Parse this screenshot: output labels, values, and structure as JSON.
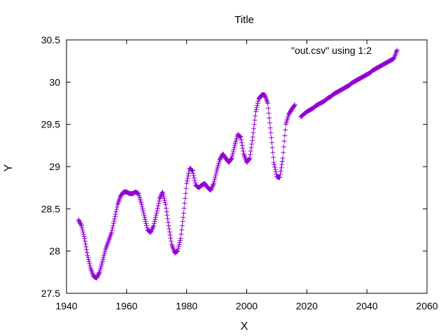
{
  "chart_data": {
    "type": "scatter",
    "title": "Title",
    "xlabel": "X",
    "ylabel": "Y",
    "xlim": [
      1940,
      2060
    ],
    "ylim": [
      27.5,
      30.5
    ],
    "xticks": [
      1940,
      1960,
      1980,
      2000,
      2020,
      2040,
      2060
    ],
    "yticks": [
      27.5,
      28,
      28.5,
      29,
      29.5,
      30,
      30.5
    ],
    "xtick_labels": [
      "1940",
      "1960",
      "1980",
      "2000",
      "2020",
      "2040",
      "2060"
    ],
    "ytick_labels": [
      "27.5",
      "28",
      "28.5",
      "29",
      "29.5",
      "30",
      "30.5"
    ],
    "grid": false,
    "legend_position": "top-right",
    "marker": "+",
    "series": [
      {
        "name": "\"out.csv\" using 1:2",
        "color": "#9400d3",
        "x": [
          1944.0,
          1945.0,
          1946.0,
          1947.0,
          1948.0,
          1949.0,
          1950.0,
          1951.0,
          1952.0,
          1953.0,
          1954.0,
          1955.0,
          1956.0,
          1957.0,
          1958.0,
          1959.0,
          1960.0,
          1961.0,
          1962.0,
          1963.0,
          1964.0,
          1965.0,
          1966.0,
          1967.0,
          1968.0,
          1969.0,
          1970.0,
          1971.0,
          1972.0,
          1973.0,
          1974.0,
          1975.0,
          1976.0,
          1977.0,
          1978.0,
          1979.0,
          1980.0,
          1981.0,
          1982.0,
          1983.0,
          1984.0,
          1985.0,
          1986.0,
          1987.0,
          1988.0,
          1989.0,
          1990.0,
          1991.0,
          1992.0,
          1993.0,
          1994.0,
          1995.0,
          1996.0,
          1997.0,
          1998.0,
          1999.0,
          2000.0,
          2001.0,
          2002.0,
          2003.0,
          2004.0,
          2005.0,
          2006.0,
          2007.0,
          2008.0,
          2009.0,
          2010.0,
          2011.0,
          2012.0,
          2013.0,
          2014.0,
          2015.0,
          2016.0,
          2018.0,
          2019.0,
          2020.0,
          2021.0,
          2022.0,
          2023.0,
          2024.0,
          2025.0,
          2026.0,
          2027.0,
          2028.0,
          2029.0,
          2030.0,
          2031.0,
          2032.0,
          2033.0,
          2034.0,
          2035.0,
          2036.0,
          2037.0,
          2038.0,
          2039.0,
          2040.0,
          2041.0,
          2042.0,
          2043.0,
          2044.0,
          2045.0,
          2046.0,
          2047.0,
          2048.0,
          2049.0,
          2050.0
        ],
        "y": [
          28.37,
          28.3,
          28.15,
          27.95,
          27.8,
          27.7,
          27.68,
          27.75,
          27.88,
          28.02,
          28.12,
          28.22,
          28.38,
          28.55,
          28.65,
          28.7,
          28.7,
          28.68,
          28.68,
          28.7,
          28.68,
          28.55,
          28.4,
          28.25,
          28.22,
          28.3,
          28.45,
          28.62,
          28.7,
          28.55,
          28.3,
          28.08,
          27.98,
          28.0,
          28.15,
          28.45,
          28.8,
          28.98,
          28.95,
          28.78,
          28.75,
          28.78,
          28.8,
          28.75,
          28.72,
          28.8,
          28.95,
          29.08,
          29.15,
          29.1,
          29.05,
          29.1,
          29.25,
          29.38,
          29.35,
          29.15,
          29.05,
          29.1,
          29.35,
          29.65,
          29.8,
          29.85,
          29.85,
          29.75,
          29.4,
          29.05,
          28.88,
          28.87,
          29.1,
          29.5,
          29.62,
          29.68,
          29.73,
          29.59,
          29.62,
          29.65,
          29.67,
          29.69,
          29.72,
          29.74,
          29.76,
          29.78,
          29.81,
          29.83,
          29.86,
          29.88,
          29.9,
          29.92,
          29.94,
          29.96,
          29.99,
          30.01,
          30.03,
          30.05,
          30.07,
          30.09,
          30.11,
          30.14,
          30.16,
          30.18,
          30.2,
          30.22,
          30.24,
          30.26,
          30.28,
          30.38
        ]
      }
    ]
  }
}
